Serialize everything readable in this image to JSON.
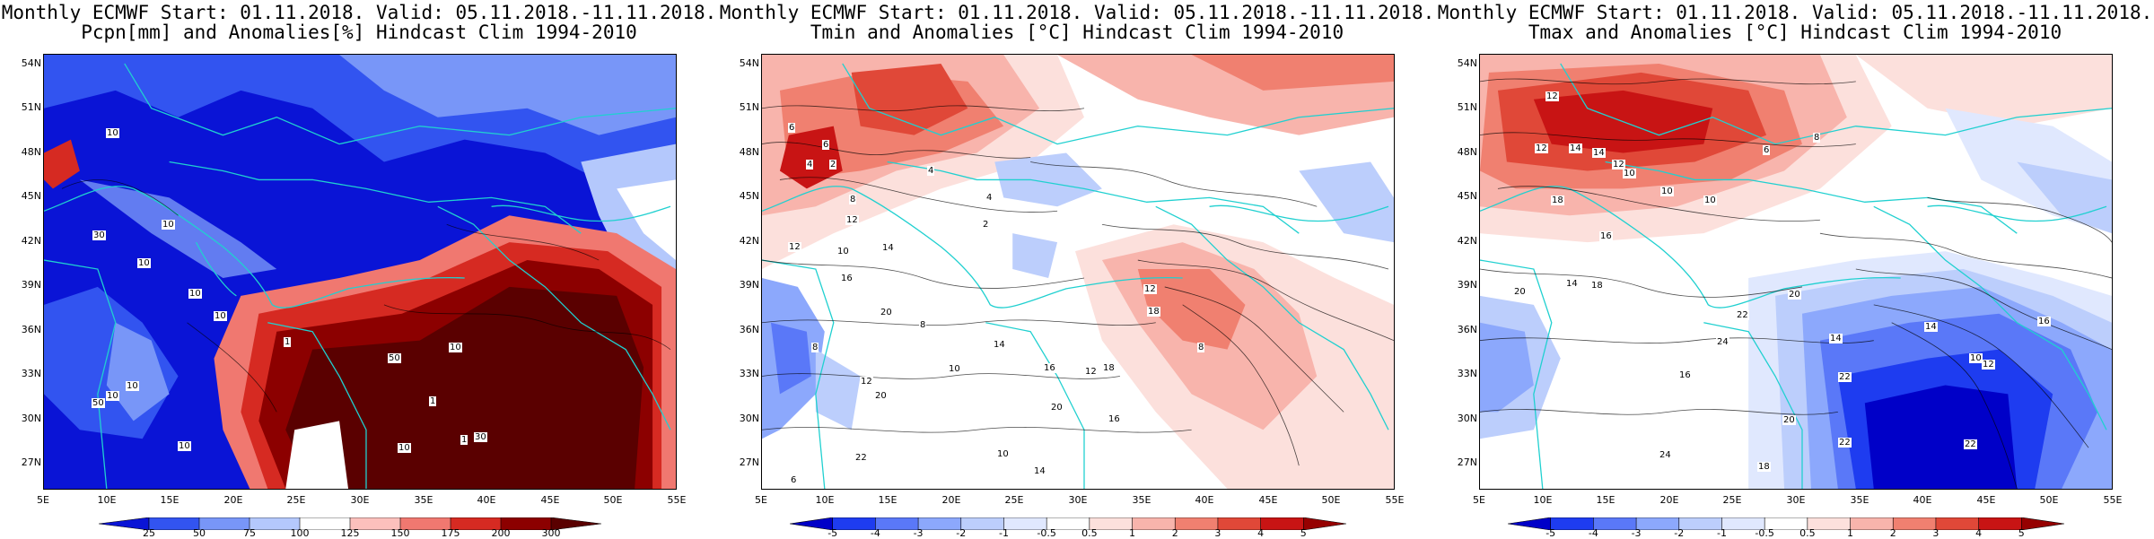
{
  "lat_labels": [
    "54N",
    "51N",
    "48N",
    "45N",
    "42N",
    "39N",
    "36N",
    "33N",
    "30N",
    "27N"
  ],
  "lon_labels": [
    "5E",
    "10E",
    "15E",
    "20E",
    "25E",
    "30E",
    "35E",
    "40E",
    "45E",
    "50E",
    "55E"
  ],
  "panels": [
    {
      "title_line1": "Monthly ECMWF Start: 01.11.2018. Valid: 05.11.2018.-11.11.2018.",
      "title_line2": "Pcpn[mm] and Anomalies[%] Hindcast Clim 1994-2010",
      "colorbar": {
        "labels": [
          "25",
          "50",
          "75",
          "100",
          "125",
          "150",
          "175",
          "200",
          "300"
        ],
        "colors": [
          "#0a14d6",
          "#3254f0",
          "#7896f8",
          "#b4c8fc",
          "#ffffff",
          "#fcc0bc",
          "#f07870",
          "#d62a22",
          "#8c0000",
          "#5a0000"
        ]
      },
      "contour_labels": [
        "10",
        "10",
        "30",
        "10",
        "10",
        "10",
        "1",
        "10",
        "50",
        "10",
        "10",
        "50",
        "10",
        "1",
        "30",
        "10",
        "1"
      ]
    },
    {
      "title_line1": "Monthly ECMWF Start: 01.11.2018. Valid: 05.11.2018.-11.11.2018.",
      "title_line2": "Tmin and Anomalies [°C] Hindcast Clim 1994-2010",
      "colorbar": {
        "labels": [
          "-5",
          "-4",
          "-3",
          "-2",
          "-1",
          "-0.5",
          "0.5",
          "1",
          "2",
          "3",
          "4",
          "5"
        ],
        "colors": [
          "#0000c8",
          "#1e3cf0",
          "#5a78f8",
          "#8ca8fc",
          "#bccefc",
          "#e0e8fe",
          "#ffffff",
          "#fce0dc",
          "#f8b4ac",
          "#f08070",
          "#e04838",
          "#c81414",
          "#960000"
        ]
      },
      "contour_labels": [
        "6",
        "6",
        "4",
        "2",
        "8",
        "4",
        "4",
        "2",
        "12",
        "20",
        "10",
        "14",
        "16",
        "12",
        "8",
        "6",
        "10",
        "14",
        "18",
        "20",
        "12",
        "16",
        "14",
        "10",
        "8",
        "20",
        "12",
        "22",
        "16",
        "18",
        "8",
        "12"
      ]
    },
    {
      "title_line1": "Monthly ECMWF Start: 01.11.2018. Valid: 05.11.2018.-11.11.2018.",
      "title_line2": "Tmax and Anomalies [°C] Hindcast Clim 1994-2010",
      "colorbar": {
        "labels": [
          "-5",
          "-4",
          "-3",
          "-2",
          "-1",
          "-0.5",
          "0.5",
          "1",
          "2",
          "3",
          "4",
          "5"
        ],
        "colors": [
          "#0000c8",
          "#1e3cf0",
          "#5a78f8",
          "#8ca8fc",
          "#bccefc",
          "#e0e8fe",
          "#ffffff",
          "#fce0dc",
          "#f8b4ac",
          "#f08070",
          "#e04838",
          "#c81414",
          "#960000"
        ]
      },
      "contour_labels": [
        "12",
        "14",
        "12",
        "14",
        "12",
        "10",
        "10",
        "18",
        "16",
        "10",
        "6",
        "8",
        "14",
        "20",
        "18",
        "16",
        "14",
        "20",
        "22",
        "24",
        "22",
        "20",
        "24",
        "22",
        "18",
        "14",
        "10",
        "12",
        "16",
        "22"
      ]
    }
  ]
}
